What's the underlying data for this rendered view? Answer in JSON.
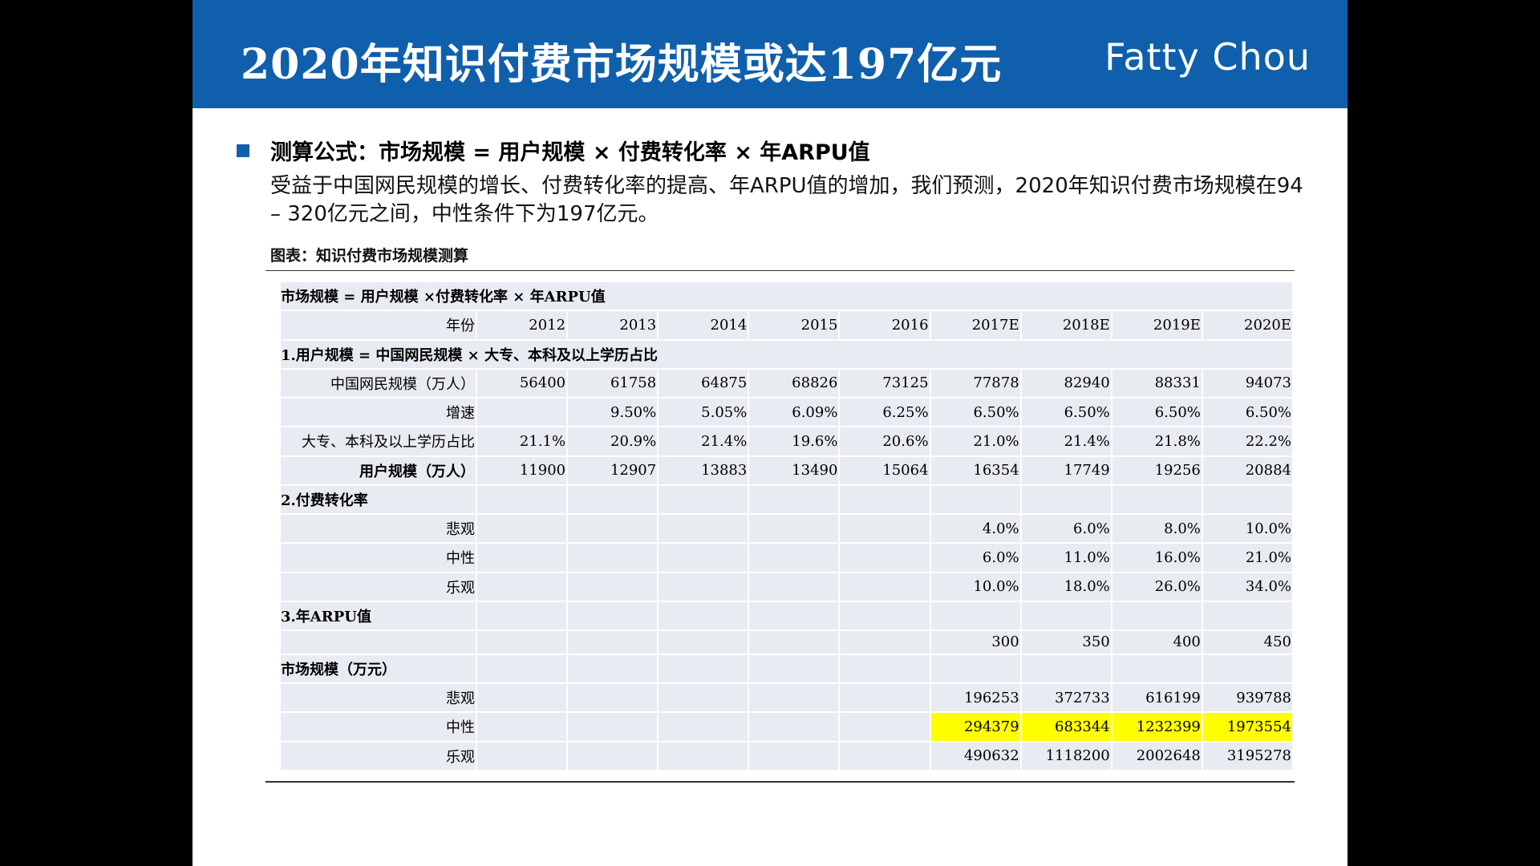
{
  "header": {
    "title": "2020年知识付费市场规模或达197亿元",
    "brand": "Fatty Chou"
  },
  "body": {
    "formula": "测算公式：市场规模 = 用户规模 × 付费转化率 × 年ARPU值",
    "description": "受益于中国网民规模的增长、付费转化率的提高、年ARPU值的增加，我们预测，2020年知识付费市场规模在94 – 320亿元之间，中性条件下为197亿元。",
    "caption": "图表：知识付费市场规模测算"
  },
  "colors": {
    "brand_blue": "#0f5fad",
    "forecast_red": "#ff0000",
    "historic_blue": "#4472c4",
    "highlight_yellow": "#ffff00",
    "table_bg": "#e9ebf3"
  },
  "table": {
    "rows": [
      {
        "type": "section",
        "label": "市场规模 = 用户规模 ×付费转化率 × 年ARPU值",
        "cells": []
      },
      {
        "type": "label",
        "label": "年份",
        "cells": [
          {
            "v": "2012"
          },
          {
            "v": "2013"
          },
          {
            "v": "2014"
          },
          {
            "v": "2015"
          },
          {
            "v": "2016"
          },
          {
            "v": "2017E"
          },
          {
            "v": "2018E"
          },
          {
            "v": "2019E"
          },
          {
            "v": "2020E"
          }
        ]
      },
      {
        "type": "section",
        "label": "1.用户规模 = 中国网民规模 × 大专、本科及以上学历占比",
        "cells": []
      },
      {
        "type": "label",
        "label": "中国网民规模（万人）",
        "cells": [
          {
            "v": "56400"
          },
          {
            "v": "61758"
          },
          {
            "v": "64875"
          },
          {
            "v": "68826"
          },
          {
            "v": "73125"
          },
          {
            "v": "77878",
            "c": "red"
          },
          {
            "v": "82940",
            "c": "red"
          },
          {
            "v": "88331",
            "c": "red"
          },
          {
            "v": "94073",
            "c": "red"
          }
        ]
      },
      {
        "type": "label",
        "label": "增速",
        "cells": [
          {
            "v": ""
          },
          {
            "v": "9.50%",
            "c": "blue"
          },
          {
            "v": "5.05%",
            "c": "blue"
          },
          {
            "v": "6.09%",
            "c": "blue"
          },
          {
            "v": "6.25%",
            "c": "blue"
          },
          {
            "v": "6.50%",
            "c": "red"
          },
          {
            "v": "6.50%",
            "c": "red"
          },
          {
            "v": "6.50%",
            "c": "red"
          },
          {
            "v": "6.50%",
            "c": "red"
          }
        ]
      },
      {
        "type": "label",
        "label": "大专、本科及以上学历占比",
        "cells": [
          {
            "v": "21.1%"
          },
          {
            "v": "20.9%"
          },
          {
            "v": "21.4%"
          },
          {
            "v": "19.6%"
          },
          {
            "v": "20.6%"
          },
          {
            "v": "21.0%",
            "c": "red"
          },
          {
            "v": "21.4%",
            "c": "red"
          },
          {
            "v": "21.8%",
            "c": "red"
          },
          {
            "v": "22.2%",
            "c": "red"
          }
        ]
      },
      {
        "type": "label",
        "bold": true,
        "label": "用户规模（万人）",
        "cells": [
          {
            "v": "11900",
            "c": "blue"
          },
          {
            "v": "12907",
            "c": "blue"
          },
          {
            "v": "13883",
            "c": "blue"
          },
          {
            "v": "13490",
            "c": "blue"
          },
          {
            "v": "15064",
            "c": "blue"
          },
          {
            "v": "16354",
            "c": "red"
          },
          {
            "v": "17749",
            "c": "red"
          },
          {
            "v": "19256",
            "c": "red"
          },
          {
            "v": "20884",
            "c": "red"
          }
        ]
      },
      {
        "type": "section",
        "label": "2.付费转化率",
        "cells": [
          {
            "v": ""
          },
          {
            "v": ""
          },
          {
            "v": ""
          },
          {
            "v": ""
          },
          {
            "v": ""
          },
          {
            "v": ""
          },
          {
            "v": ""
          },
          {
            "v": ""
          },
          {
            "v": ""
          }
        ]
      },
      {
        "type": "label",
        "label": "悲观",
        "cells": [
          {
            "v": ""
          },
          {
            "v": ""
          },
          {
            "v": ""
          },
          {
            "v": ""
          },
          {
            "v": ""
          },
          {
            "v": "4.0%",
            "c": "red"
          },
          {
            "v": "6.0%",
            "c": "red"
          },
          {
            "v": "8.0%",
            "c": "red"
          },
          {
            "v": "10.0%",
            "c": "red"
          }
        ]
      },
      {
        "type": "label",
        "label": "中性",
        "cells": [
          {
            "v": ""
          },
          {
            "v": ""
          },
          {
            "v": ""
          },
          {
            "v": ""
          },
          {
            "v": ""
          },
          {
            "v": "6.0%",
            "c": "red"
          },
          {
            "v": "11.0%",
            "c": "red"
          },
          {
            "v": "16.0%",
            "c": "red"
          },
          {
            "v": "21.0%",
            "c": "red"
          }
        ]
      },
      {
        "type": "label",
        "label": "乐观",
        "cells": [
          {
            "v": ""
          },
          {
            "v": ""
          },
          {
            "v": ""
          },
          {
            "v": ""
          },
          {
            "v": ""
          },
          {
            "v": "10.0%",
            "c": "red"
          },
          {
            "v": "18.0%",
            "c": "red"
          },
          {
            "v": "26.0%",
            "c": "red"
          },
          {
            "v": "34.0%",
            "c": "red"
          }
        ]
      },
      {
        "type": "section",
        "label": "3.年ARPU值",
        "cells": [
          {
            "v": ""
          },
          {
            "v": ""
          },
          {
            "v": ""
          },
          {
            "v": ""
          },
          {
            "v": ""
          },
          {
            "v": ""
          },
          {
            "v": ""
          },
          {
            "v": ""
          },
          {
            "v": ""
          }
        ]
      },
      {
        "type": "label",
        "label": "",
        "cells": [
          {
            "v": ""
          },
          {
            "v": ""
          },
          {
            "v": ""
          },
          {
            "v": ""
          },
          {
            "v": ""
          },
          {
            "v": "300",
            "c": "red"
          },
          {
            "v": "350",
            "c": "red"
          },
          {
            "v": "400",
            "c": "red"
          },
          {
            "v": "450",
            "c": "red"
          }
        ]
      },
      {
        "type": "section",
        "label": "市场规模（万元）",
        "cells": [
          {
            "v": ""
          },
          {
            "v": ""
          },
          {
            "v": ""
          },
          {
            "v": ""
          },
          {
            "v": ""
          },
          {
            "v": ""
          },
          {
            "v": ""
          },
          {
            "v": ""
          },
          {
            "v": ""
          }
        ]
      },
      {
        "type": "label",
        "label": "悲观",
        "cells": [
          {
            "v": ""
          },
          {
            "v": ""
          },
          {
            "v": ""
          },
          {
            "v": ""
          },
          {
            "v": ""
          },
          {
            "v": "196253",
            "c": "red"
          },
          {
            "v": "372733",
            "c": "red"
          },
          {
            "v": "616199",
            "c": "red"
          },
          {
            "v": "939788",
            "c": "red"
          }
        ]
      },
      {
        "type": "label",
        "label": "中性",
        "cells": [
          {
            "v": ""
          },
          {
            "v": ""
          },
          {
            "v": ""
          },
          {
            "v": ""
          },
          {
            "v": ""
          },
          {
            "v": "294379",
            "c": "red",
            "hl": true
          },
          {
            "v": "683344",
            "c": "red",
            "hl": true
          },
          {
            "v": "1232399",
            "c": "red",
            "hl": true
          },
          {
            "v": "1973554",
            "c": "red",
            "hl": true
          }
        ]
      },
      {
        "type": "label",
        "label": "乐观",
        "cells": [
          {
            "v": ""
          },
          {
            "v": ""
          },
          {
            "v": ""
          },
          {
            "v": ""
          },
          {
            "v": ""
          },
          {
            "v": "490632",
            "c": "red"
          },
          {
            "v": "1118200",
            "c": "red"
          },
          {
            "v": "2002648",
            "c": "red"
          },
          {
            "v": "3195278",
            "c": "red"
          }
        ]
      }
    ]
  }
}
